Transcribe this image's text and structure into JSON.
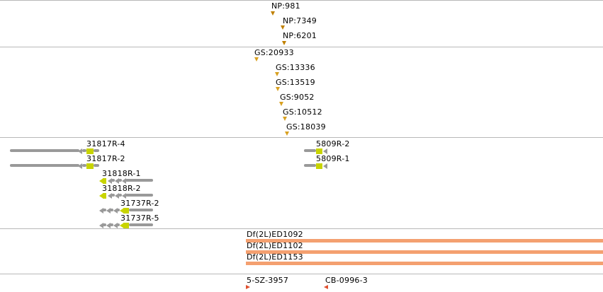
{
  "tracks": {
    "np": {
      "features": [
        {
          "label": "NP:981"
        },
        {
          "label": "NP:7349"
        },
        {
          "label": "NP:6201"
        }
      ]
    },
    "gs": {
      "features": [
        {
          "label": "GS:20933"
        },
        {
          "label": "GS:13336"
        },
        {
          "label": "GS:13519"
        },
        {
          "label": "GS:9052"
        },
        {
          "label": "GS:10512"
        },
        {
          "label": "GS:18039"
        }
      ]
    },
    "transcripts": {
      "features": [
        {
          "label": "31817R-4"
        },
        {
          "label": "31817R-2"
        },
        {
          "label": "31818R-1"
        },
        {
          "label": "31818R-2"
        },
        {
          "label": "31737R-2"
        },
        {
          "label": "31737R-5"
        },
        {
          "label": "5809R-2"
        },
        {
          "label": "5809R-1"
        }
      ]
    },
    "deficiencies": {
      "features": [
        {
          "label": "Df(2L)ED1092"
        },
        {
          "label": "Df(2L)ED1102"
        },
        {
          "label": "Df(2L)ED1153"
        }
      ]
    },
    "insertions": {
      "features": [
        {
          "label": "5-SZ-3957"
        },
        {
          "label": "CB-0996-3"
        }
      ]
    }
  },
  "colors": {
    "separator": "#b8b8b8",
    "np_marker": "#c08000",
    "gs_marker": "#d8a020",
    "gene_body": "#999999",
    "gene_cds": "#c8d400",
    "deficiency_bar": "#f4a070",
    "insertion_marker": "#e05030"
  }
}
